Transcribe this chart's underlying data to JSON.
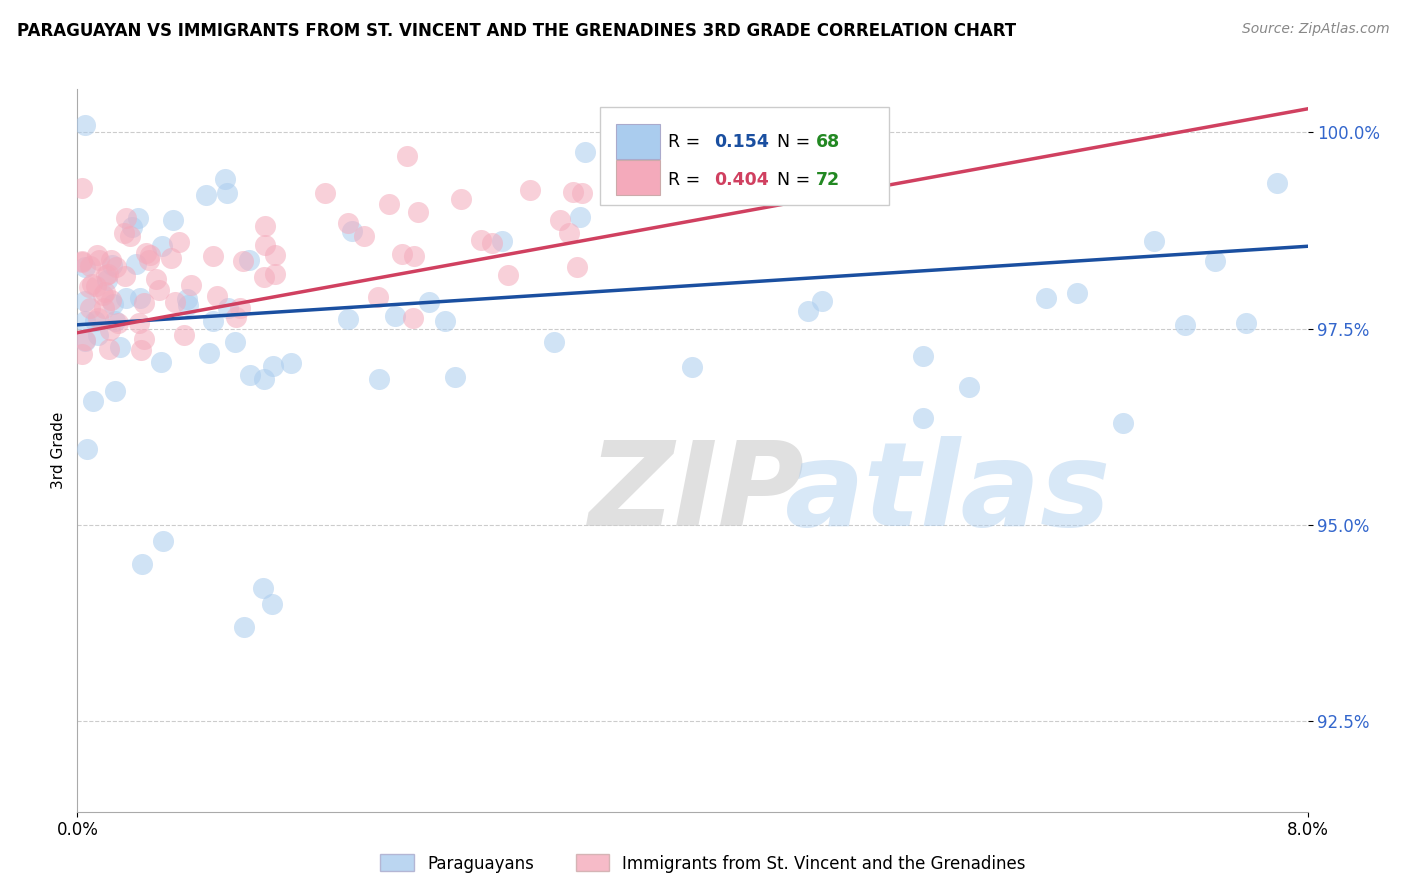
{
  "title": "PARAGUAYAN VS IMMIGRANTS FROM ST. VINCENT AND THE GRENADINES 3RD GRADE CORRELATION CHART",
  "source": "Source: ZipAtlas.com",
  "ylabel": "3rd Grade",
  "xmin": 0.0,
  "xmax": 0.08,
  "ymin": 0.9135,
  "ymax": 1.0055,
  "yticks": [
    0.925,
    0.95,
    0.975,
    1.0
  ],
  "ytick_labels": [
    "92.5%",
    "95.0%",
    "97.5%",
    "100.0%"
  ],
  "xtick_left": "0.0%",
  "xtick_right": "8.0%",
  "legend_blue_r": "0.154",
  "legend_blue_n": "68",
  "legend_pink_r": "0.404",
  "legend_pink_n": "72",
  "blue_scatter_color": "#aaccee",
  "pink_scatter_color": "#f4aabb",
  "blue_line_color": "#1a4fa0",
  "pink_line_color": "#d04060",
  "blue_line_y0": 0.9755,
  "blue_line_y1": 0.9855,
  "pink_line_y0": 0.9745,
  "pink_line_y1": 1.003,
  "grid_color": "#cccccc",
  "legend_label_blue": "Paraguayans",
  "legend_label_pink": "Immigrants from St. Vincent and the Grenadines",
  "r_color_blue": "#1a4fa0",
  "r_color_pink": "#d04060",
  "n_color": "#228822"
}
